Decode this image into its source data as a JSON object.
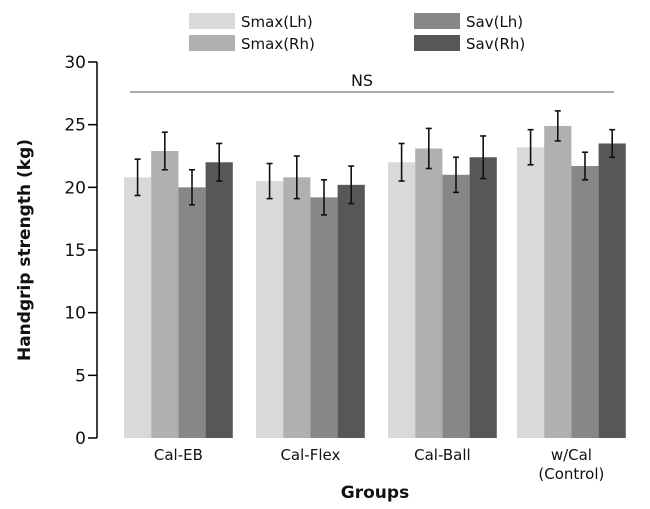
{
  "chart_data": {
    "type": "bar",
    "title": "",
    "xlabel": "Groups",
    "ylabel": "Handgrip strength (kg)",
    "ylim": [
      0,
      30
    ],
    "yticks": [
      0,
      5,
      10,
      15,
      20,
      25,
      30
    ],
    "ytick_labels": [
      "0",
      "5",
      "10",
      "15",
      "20",
      "25",
      "30"
    ],
    "grid": false,
    "legend_position": "top",
    "categories": [
      [
        "Cal-EB"
      ],
      [
        "Cal-Flex"
      ],
      [
        "Cal-Ball"
      ],
      [
        "w/Cal",
        "(Control)"
      ]
    ],
    "series": [
      {
        "name": "Smax(Lh)",
        "color": "#d9d9d9",
        "values": [
          20.8,
          20.5,
          22.0,
          23.2
        ],
        "errors": [
          1.45,
          1.4,
          1.5,
          1.4
        ]
      },
      {
        "name": "Smax(Rh)",
        "color": "#b0b0b0",
        "values": [
          22.9,
          20.8,
          23.1,
          24.9
        ],
        "errors": [
          1.5,
          1.7,
          1.6,
          1.2
        ]
      },
      {
        "name": "Sav(Lh)",
        "color": "#878787",
        "values": [
          20.0,
          19.2,
          21.0,
          21.7
        ],
        "errors": [
          1.4,
          1.4,
          1.4,
          1.1
        ]
      },
      {
        "name": "Sav(Rh)",
        "color": "#575757",
        "values": [
          22.0,
          20.2,
          22.4,
          23.5
        ],
        "errors": [
          1.5,
          1.5,
          1.7,
          1.1
        ]
      }
    ],
    "annotations": [
      {
        "text": "NS",
        "type": "significance-bracket",
        "spans": "all groups"
      }
    ]
  }
}
